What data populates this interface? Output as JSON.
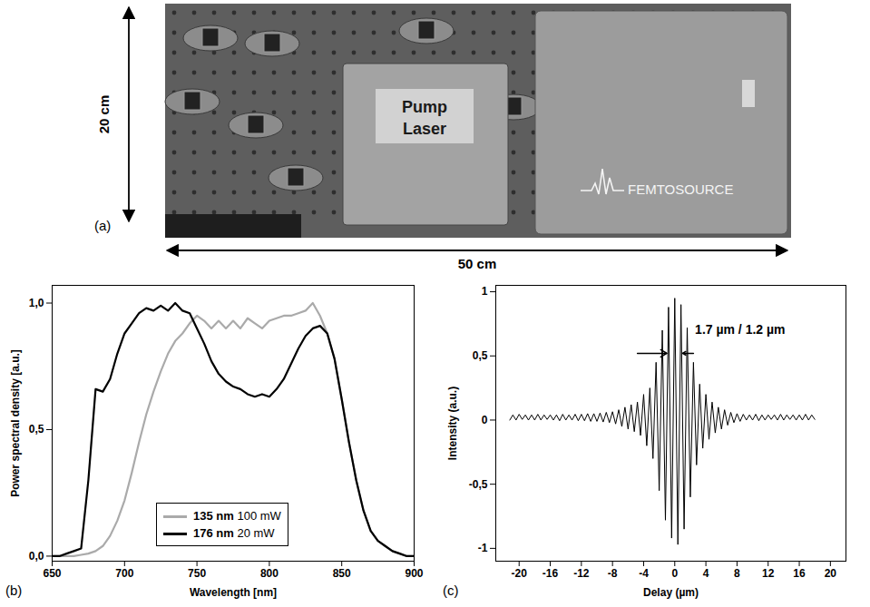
{
  "photo": {
    "panel": "(a)",
    "height_label": "20 cm",
    "width_label": "50 cm",
    "labels": [
      "Pump Laser",
      "FEMTOSOURCE"
    ]
  },
  "chart_data": [
    {
      "panel": "(b)",
      "type": "line",
      "xlabel": "Wavelength [nm]",
      "ylabel": "Power spectral density [a.u.]",
      "x": [
        650,
        655,
        660,
        665,
        670,
        675,
        680,
        685,
        690,
        695,
        700,
        705,
        710,
        715,
        720,
        725,
        730,
        735,
        740,
        745,
        750,
        755,
        760,
        765,
        770,
        775,
        780,
        785,
        790,
        795,
        800,
        805,
        810,
        815,
        820,
        825,
        830,
        835,
        840,
        845,
        850,
        855,
        860,
        865,
        870,
        875,
        880,
        885,
        890,
        895,
        900
      ],
      "series": [
        {
          "name": "135 nm 100 mW",
          "color": "#aaaaaa",
          "values": [
            0,
            0,
            0,
            0,
            0.005,
            0.01,
            0.02,
            0.04,
            0.08,
            0.14,
            0.22,
            0.33,
            0.45,
            0.56,
            0.65,
            0.73,
            0.8,
            0.85,
            0.88,
            0.92,
            0.95,
            0.93,
            0.9,
            0.93,
            0.9,
            0.93,
            0.9,
            0.94,
            0.92,
            0.9,
            0.93,
            0.94,
            0.95,
            0.95,
            0.96,
            0.97,
            1.0,
            0.95,
            0.88,
            0.78,
            0.62,
            0.45,
            0.3,
            0.18,
            0.1,
            0.06,
            0.04,
            0.02,
            0.01,
            0,
            0
          ]
        },
        {
          "name": "176 nm 20 mW",
          "color": "#000000",
          "values": [
            0,
            0,
            0.01,
            0.02,
            0.03,
            0.3,
            0.66,
            0.65,
            0.7,
            0.8,
            0.88,
            0.92,
            0.96,
            0.98,
            0.97,
            0.99,
            0.97,
            1.0,
            0.97,
            0.96,
            0.9,
            0.84,
            0.77,
            0.72,
            0.69,
            0.67,
            0.66,
            0.64,
            0.63,
            0.64,
            0.63,
            0.66,
            0.7,
            0.76,
            0.82,
            0.87,
            0.9,
            0.91,
            0.88,
            0.78,
            0.62,
            0.45,
            0.3,
            0.18,
            0.1,
            0.06,
            0.04,
            0.02,
            0.01,
            0,
            0
          ]
        }
      ],
      "xlim": [
        650,
        900
      ],
      "ylim": [
        -0.02,
        1.07
      ],
      "xticks": [
        650,
        700,
        750,
        800,
        850,
        900
      ],
      "yticks": [
        {
          "value": 0,
          "label": "0,0"
        },
        {
          "value": 0.5,
          "label": "0,5"
        },
        {
          "value": 1,
          "label": "1,0"
        }
      ],
      "legend": "bottom",
      "grid": false
    },
    {
      "panel": "(c)",
      "type": "line",
      "xlabel": "Delay (µm)",
      "ylabel": "Intensity (a.u.)",
      "annotations": [
        "1.7 µm / 1.2 µm"
      ],
      "color": "#000000",
      "x": [
        -21.2,
        -20.8,
        -20.4,
        -20,
        -19.6,
        -19.2,
        -18.8,
        -18.4,
        -18,
        -17.6,
        -17.2,
        -16.8,
        -16.4,
        -16,
        -15.6,
        -15.2,
        -14.8,
        -14.4,
        -14,
        -13.6,
        -13.2,
        -12.8,
        -12.4,
        -12,
        -11.6,
        -11.2,
        -10.8,
        -10.4,
        -10,
        -9.6,
        -9.2,
        -8.8,
        -8.4,
        -8,
        -7.6,
        -7.2,
        -6.8,
        -6.4,
        -6,
        -5.6,
        -5.2,
        -4.8,
        -4.4,
        -4,
        -3.6,
        -3.2,
        -2.8,
        -2.4,
        -2,
        -1.6,
        -1.2,
        -0.8,
        -0.4,
        0,
        0.4,
        0.8,
        1.2,
        1.6,
        2,
        2.4,
        2.8,
        3.2,
        3.6,
        4,
        4.4,
        4.8,
        5.2,
        5.6,
        6,
        6.4,
        6.8,
        7.2,
        7.6,
        8,
        8.4,
        8.8,
        9.2,
        9.6,
        10,
        10.4,
        10.8,
        11.2,
        11.6,
        12,
        12.4,
        12.8,
        13.2,
        13.6,
        14,
        14.4,
        14.8,
        15.2,
        15.6,
        16,
        16.4,
        16.8,
        17.2,
        17.6,
        18
      ],
      "values": [
        0,
        0.04,
        0,
        0.045,
        0.005,
        0.04,
        0,
        0.04,
        0,
        0.045,
        0,
        0.04,
        0.005,
        0.04,
        0,
        0.04,
        -0.005,
        0.045,
        0,
        0.04,
        0,
        0.045,
        -0.005,
        0.045,
        -0.005,
        0.05,
        -0.01,
        0.05,
        -0.01,
        0.055,
        -0.015,
        0.06,
        -0.02,
        0.065,
        -0.03,
        0.08,
        -0.05,
        0.1,
        -0.07,
        0.12,
        -0.09,
        0.14,
        -0.12,
        0.2,
        -0.2,
        0.25,
        -0.3,
        0.45,
        -0.55,
        0.7,
        -0.78,
        0.88,
        -0.92,
        0.95,
        -0.97,
        0.9,
        -0.85,
        0.72,
        -0.6,
        0.45,
        -0.35,
        0.28,
        -0.22,
        0.2,
        -0.15,
        0.14,
        -0.1,
        0.1,
        -0.07,
        0.08,
        -0.04,
        0.06,
        -0.02,
        0.05,
        -0.01,
        0.045,
        0,
        0.04,
        0,
        0.045,
        -0.005,
        0.04,
        0,
        0.04,
        0.005,
        0.04,
        0,
        0.045,
        0,
        0.04,
        0.005,
        0.04,
        0,
        0.04,
        0,
        0.045,
        0,
        0.04,
        0.005
      ],
      "xlim": [
        -23,
        22
      ],
      "ylim": [
        -1.1,
        1.05
      ],
      "xticks": [
        -20,
        -16,
        -12,
        -8,
        -4,
        0,
        4,
        8,
        12,
        16,
        20
      ],
      "yticks": [
        -1,
        {
          "value": -0.5,
          "label": "-0,5"
        },
        0,
        {
          "value": 0.5,
          "label": "0,5"
        },
        1
      ],
      "grid": false
    }
  ]
}
